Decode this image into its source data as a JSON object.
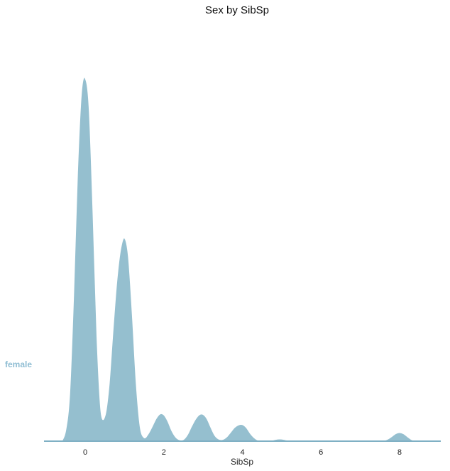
{
  "chart_data": {
    "type": "area",
    "title": "Sex by SibSp",
    "xlabel": "SibSp",
    "ylabel": "",
    "xlim": [
      -1.05,
      9.05
    ],
    "ylim": [
      0,
      1.0
    ],
    "xticks": [
      0,
      2,
      4,
      6,
      8
    ],
    "grid": false,
    "colors": {
      "fill": "#95bfcf",
      "edge": "#ffffff",
      "baseline": "#7fb0c4",
      "label": "#8fbdd3"
    },
    "series": [
      {
        "name": "female",
        "x": [
          -0.6,
          -0.5,
          -0.4,
          -0.3,
          -0.2,
          -0.1,
          0.0,
          0.1,
          0.2,
          0.3,
          0.4,
          0.5,
          0.6,
          0.7,
          0.8,
          0.9,
          1.0,
          1.1,
          1.2,
          1.3,
          1.4,
          1.5,
          1.6,
          1.7,
          1.8,
          1.9,
          2.0,
          2.1,
          2.2,
          2.3,
          2.4,
          2.5,
          2.6,
          2.7,
          2.8,
          2.9,
          3.0,
          3.1,
          3.2,
          3.3,
          3.4,
          3.5,
          3.6,
          3.7,
          3.8,
          3.9,
          4.0,
          4.1,
          4.2,
          4.3,
          4.4,
          4.5,
          4.6,
          4.7,
          4.8,
          4.9,
          5.0,
          5.1,
          5.2,
          5.3,
          5.5,
          6.0,
          6.5,
          7.0,
          7.5,
          7.6,
          7.7,
          7.8,
          7.9,
          8.0,
          8.1,
          8.2,
          8.3,
          8.4,
          8.6
        ],
        "y": [
          0.0,
          0.03,
          0.13,
          0.4,
          0.74,
          0.96,
          1.0,
          0.92,
          0.63,
          0.29,
          0.085,
          0.07,
          0.15,
          0.3,
          0.44,
          0.53,
          0.56,
          0.51,
          0.35,
          0.16,
          0.04,
          0.01,
          0.02,
          0.04,
          0.062,
          0.075,
          0.073,
          0.056,
          0.03,
          0.012,
          0.004,
          0.005,
          0.018,
          0.04,
          0.06,
          0.073,
          0.074,
          0.062,
          0.038,
          0.016,
          0.006,
          0.005,
          0.012,
          0.025,
          0.038,
          0.045,
          0.046,
          0.038,
          0.022,
          0.01,
          0.003,
          0.002,
          0.001,
          0.002,
          0.004,
          0.006,
          0.006,
          0.004,
          0.002,
          0.001,
          0.0,
          0.0,
          0.0,
          0.0,
          0.0,
          0.002,
          0.006,
          0.013,
          0.021,
          0.024,
          0.021,
          0.013,
          0.005,
          0.001,
          0.0
        ]
      }
    ]
  }
}
